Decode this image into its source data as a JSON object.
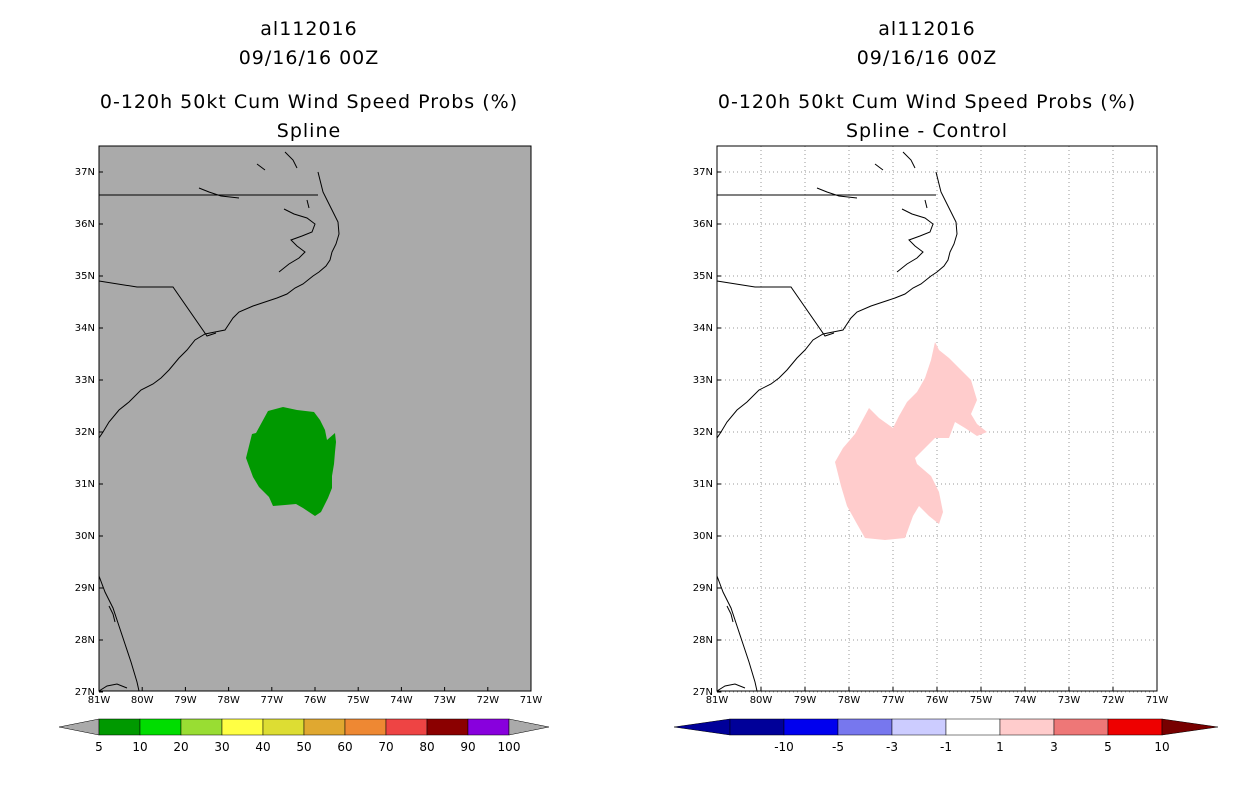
{
  "left": {
    "title_storm": "al112016",
    "title_date": "09/16/16 00Z",
    "title_product": "0-120h 50kt Cum Wind Speed Probs (%)",
    "title_method": "Spline",
    "colorbar": {
      "colors": [
        "#009900",
        "#00dd00",
        "#99dd33",
        "#ffff44",
        "#dddd33",
        "#e0a830",
        "#ee8833",
        "#ee4444",
        "#8b0000",
        "#8800dd"
      ],
      "labels": [
        "5",
        "10",
        "20",
        "30",
        "40",
        "50",
        "60",
        "70",
        "80",
        "90",
        "100"
      ]
    }
  },
  "right": {
    "title_storm": "al112016",
    "title_date": "09/16/16 00Z",
    "title_product": "0-120h 50kt Cum Wind Speed Probs (%)",
    "title_method": "Spline - Control",
    "colorbar": {
      "colors": [
        "#000099",
        "#0000ee",
        "#7777ee",
        "#ccccff",
        "#ffffff",
        "#ffcccc",
        "#ee7777",
        "#ee0000"
      ],
      "labels": [
        "-10",
        "-5",
        "-3",
        "-1",
        "1",
        "3",
        "5",
        "10"
      ]
    }
  },
  "map": {
    "lat_labels": [
      "37N",
      "36N",
      "35N",
      "34N",
      "33N",
      "32N",
      "31N",
      "30N",
      "29N",
      "28N",
      "27N"
    ],
    "lon_labels": [
      "81W",
      "80W",
      "79W",
      "78W",
      "77W",
      "76W",
      "75W",
      "74W",
      "73W",
      "72W",
      "71W"
    ],
    "left_background": "#aaaaaa",
    "left_fill": "#009900",
    "right_fill": "#ffcccc"
  }
}
